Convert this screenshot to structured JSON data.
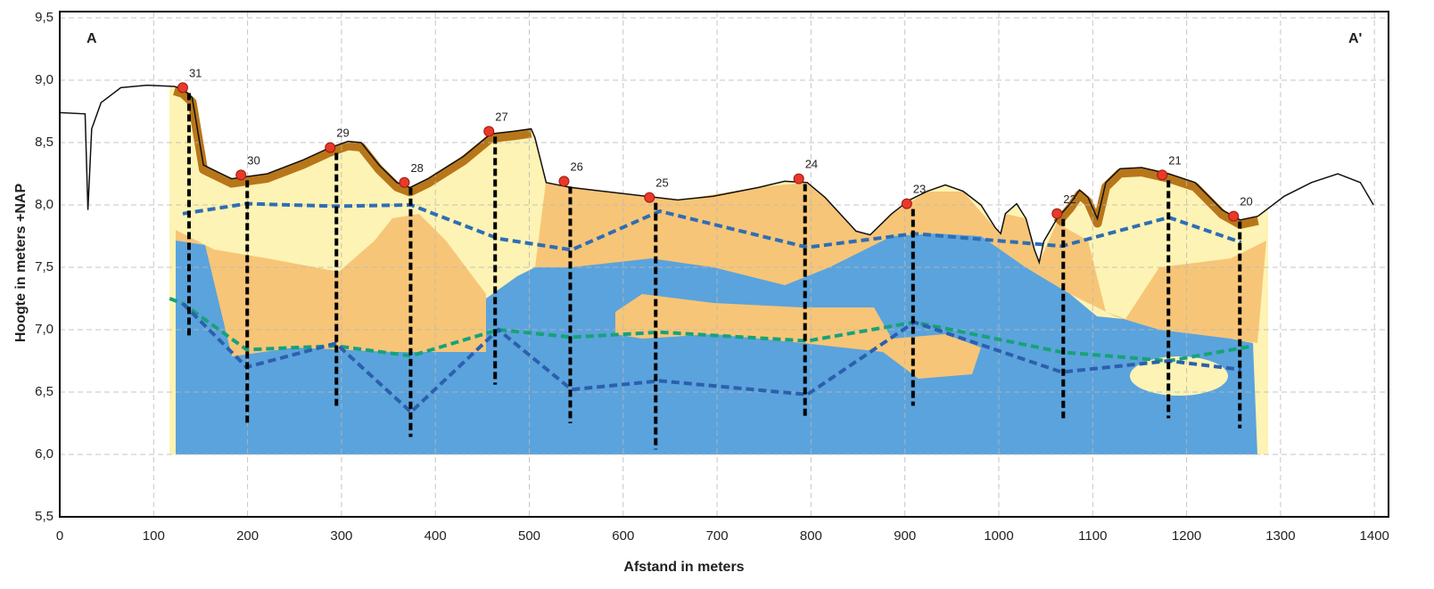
{
  "chart_data": {
    "type": "line",
    "x_label": "Afstand in meters",
    "y_label": "Hoogte in meters +NAP",
    "annotations": [
      "A",
      "A'"
    ],
    "xlim": [
      0,
      1415
    ],
    "ylim": [
      5.5,
      9.55
    ],
    "xticks": [
      0,
      100,
      200,
      300,
      400,
      500,
      600,
      700,
      800,
      900,
      1000,
      1100,
      1200,
      1300,
      1400
    ],
    "yticks": [
      {
        "value": 5.5,
        "label": "5,5"
      },
      {
        "value": 6.0,
        "label": "6,0"
      },
      {
        "value": 6.5,
        "label": "6,5"
      },
      {
        "value": 7.0,
        "label": "7,0"
      },
      {
        "value": 7.5,
        "label": "7,5"
      },
      {
        "value": 8.0,
        "label": "8,0"
      },
      {
        "value": 8.5,
        "label": "8,5"
      },
      {
        "value": 9.0,
        "label": "9,0"
      },
      {
        "value": 9.5,
        "label": "9,5"
      }
    ],
    "grid": true,
    "surface": {
      "color": "#111111",
      "x": [
        0,
        27,
        30,
        34,
        44,
        65,
        93,
        122,
        131,
        141,
        153,
        183,
        221,
        259,
        288,
        307,
        321,
        340,
        359,
        373,
        392,
        430,
        459,
        483,
        502,
        506,
        518,
        544,
        601,
        658,
        696,
        744,
        772,
        796,
        815,
        848,
        863,
        886,
        905,
        924,
        943,
        962,
        981,
        996,
        1002,
        1007,
        1019,
        1029,
        1038,
        1043,
        1048,
        1062,
        1076,
        1086,
        1095,
        1105,
        1114,
        1129,
        1152,
        1181,
        1209,
        1238,
        1257,
        1276,
        1304,
        1333,
        1361,
        1385,
        1399
      ],
      "values": [
        8.74,
        8.73,
        7.96,
        8.61,
        8.82,
        8.94,
        8.96,
        8.95,
        8.93,
        8.86,
        8.32,
        8.21,
        8.25,
        8.36,
        8.46,
        8.51,
        8.5,
        8.32,
        8.18,
        8.14,
        8.21,
        8.39,
        8.57,
        8.59,
        8.61,
        8.54,
        8.18,
        8.14,
        8.09,
        8.04,
        8.07,
        8.14,
        8.19,
        8.18,
        8.06,
        7.79,
        7.76,
        7.93,
        8.04,
        8.11,
        8.16,
        8.11,
        8.0,
        7.82,
        7.77,
        7.93,
        8.01,
        7.89,
        7.64,
        7.54,
        7.71,
        7.89,
        8.01,
        8.12,
        8.06,
        7.89,
        8.18,
        8.29,
        8.3,
        8.25,
        8.18,
        7.96,
        7.88,
        7.91,
        8.07,
        8.18,
        8.25,
        8.18,
        8.0
      ]
    },
    "series": [
      {
        "color": "#2f6db5",
        "x": [
          131,
          199,
          294,
          374,
          467,
          545,
          639,
          796,
          910,
          1067,
          1181,
          1258
        ],
        "values": [
          7.93,
          8.01,
          7.99,
          8.0,
          7.73,
          7.64,
          7.95,
          7.66,
          7.77,
          7.67,
          7.9,
          7.7
        ]
      },
      {
        "color": "#17a27a",
        "x": [
          117,
          131,
          199,
          294,
          374,
          467,
          545,
          639,
          796,
          910,
          1067,
          1181,
          1271
        ],
        "values": [
          7.25,
          7.21,
          6.84,
          6.87,
          6.79,
          7.0,
          6.94,
          6.98,
          6.91,
          7.06,
          6.82,
          6.75,
          6.87
        ]
      },
      {
        "color": "#2c5fae",
        "x": [
          131,
          199,
          294,
          374,
          467,
          545,
          639,
          796,
          910,
          1067,
          1181,
          1258
        ],
        "values": [
          7.21,
          6.7,
          6.89,
          6.34,
          7.0,
          6.52,
          6.59,
          6.48,
          7.06,
          6.66,
          6.75,
          6.68
        ]
      }
    ],
    "boreholes": {
      "labels": [
        "31",
        "30",
        "29",
        "28",
        "27",
        "26",
        "25",
        "24",
        "23",
        "22",
        "21",
        "20"
      ],
      "x": [
        131,
        193,
        288,
        367,
        457,
        537,
        628,
        787,
        902,
        1062,
        1174,
        1250
      ],
      "top": [
        8.94,
        8.24,
        8.46,
        8.18,
        8.59,
        8.19,
        8.06,
        8.21,
        8.01,
        7.93,
        8.24,
        7.91
      ],
      "bottom": [
        6.93,
        6.25,
        6.39,
        6.14,
        6.56,
        6.25,
        6.04,
        6.29,
        6.39,
        6.29,
        6.29,
        6.21
      ],
      "color": "#e8392a"
    }
  }
}
